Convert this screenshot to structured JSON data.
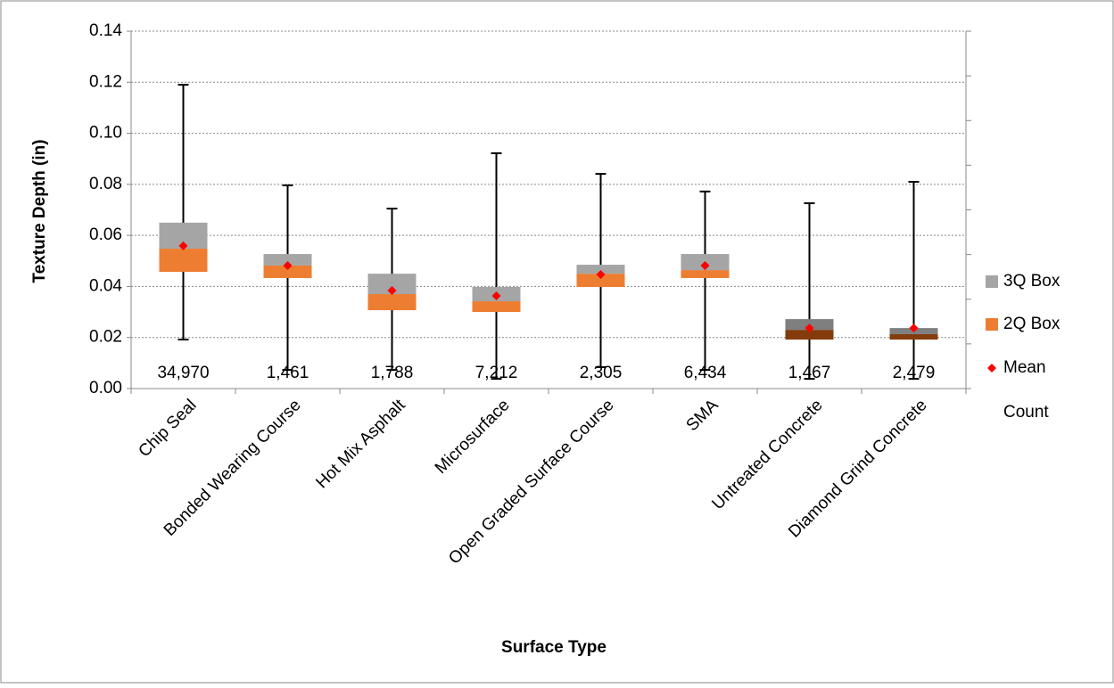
{
  "chart_data": {
    "type": "box",
    "x_label": "Surface Type",
    "y_label": "Texture Depth (in)",
    "categories": [
      "Chip Seal",
      "Bonded Wearing Course",
      "Hot Mix Asphalt",
      "Microsurface",
      "Open Graded Surface Course",
      "SMA",
      "Untreated Concrete",
      "Diamond Grind Concrete"
    ],
    "ylim": [
      0,
      0.14
    ],
    "yticks": [
      {
        "value": 0,
        "label": "0.00"
      },
      0.02,
      0.04,
      0.06,
      0.08,
      {
        "value": 0.1,
        "label": "0.10"
      },
      0.12,
      0.14
    ],
    "grid": true,
    "legend": "right",
    "min": [
      0.0192,
      0.0073,
      0.0073,
      0.0038,
      0.0084,
      0.0073,
      0.0038,
      0.0038
    ],
    "q1": [
      0.0457,
      0.0433,
      0.0307,
      0.03,
      0.0398,
      0.0433,
      0.0192,
      0.0192
    ],
    "median": [
      0.0548,
      0.0482,
      0.037,
      0.0342,
      0.045,
      0.0464,
      0.023,
      0.0213
    ],
    "q3": [
      0.065,
      0.0527,
      0.045,
      0.0398,
      0.0485,
      0.0527,
      0.0272,
      0.0237
    ],
    "max": [
      0.119,
      0.0796,
      0.0705,
      0.0922,
      0.0841,
      0.0772,
      0.0726,
      0.081
    ],
    "series": [
      {
        "name": "3Q Box",
        "color": "#a5a5a5",
        "colors": [
          "#a5a5a5",
          "#a5a5a5",
          "#a5a5a5",
          "#a5a5a5",
          "#a5a5a5",
          "#a5a5a5",
          "#7f7f7f",
          "#7f7f7f"
        ]
      },
      {
        "name": "2Q Box",
        "color": "#ed7d31",
        "colors": [
          "#ed7d31",
          "#ed7d31",
          "#ed7d31",
          "#ed7d31",
          "#ed7d31",
          "#ed7d31",
          "#843c0c",
          "#843c0c"
        ]
      },
      {
        "name": "Mean",
        "color": "#ff0000",
        "values": [
          0.0559,
          0.0482,
          0.0384,
          0.0363,
          0.0447,
          0.0482,
          0.0237,
          0.0237
        ]
      },
      {
        "name": "Count",
        "values": [
          34970,
          1461,
          1788,
          7212,
          2305,
          6434,
          1467,
          2479
        ],
        "value_labels": [
          "34,970",
          "1,461",
          "1,788",
          "7,212",
          "2,305",
          "6,434",
          "1,467",
          "2,479"
        ]
      }
    ]
  }
}
